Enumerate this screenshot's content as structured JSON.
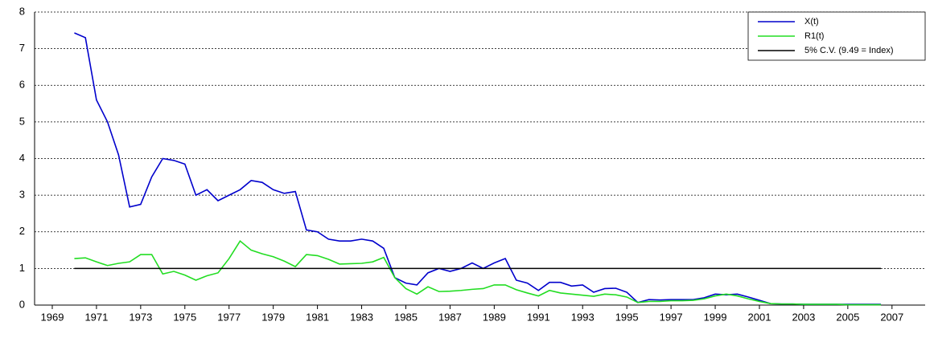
{
  "chart_data": {
    "type": "line",
    "x": [
      1970,
      1970.5,
      1971,
      1971.5,
      1972,
      1972.5,
      1973,
      1973.5,
      1974,
      1974.5,
      1975,
      1975.5,
      1976,
      1976.5,
      1977,
      1977.5,
      1978,
      1978.5,
      1979,
      1979.5,
      1980,
      1980.5,
      1981,
      1981.5,
      1982,
      1982.5,
      1983,
      1983.5,
      1984,
      1984.5,
      1985,
      1985.5,
      1986,
      1986.5,
      1987,
      1987.5,
      1988,
      1988.5,
      1989,
      1989.5,
      1990,
      1990.5,
      1991,
      1991.5,
      1992,
      1992.5,
      1993,
      1993.5,
      1994,
      1994.5,
      1995,
      1995.5,
      1996,
      1996.5,
      1997,
      1997.5,
      1998,
      1998.5,
      1999,
      1999.5,
      2000,
      2000.5,
      2001,
      2001.5,
      2002,
      2002.5,
      2003,
      2003.5,
      2004,
      2004.5,
      2005,
      2005.5,
      2006,
      2006.5
    ],
    "series": [
      {
        "name": "X(t)",
        "color": "#0000cc",
        "values": [
          7.43,
          7.3,
          5.6,
          5.0,
          4.1,
          2.68,
          2.75,
          3.5,
          4.0,
          3.95,
          3.85,
          3.0,
          3.15,
          2.85,
          3.0,
          3.15,
          3.4,
          3.35,
          3.15,
          3.05,
          3.1,
          2.05,
          2.0,
          1.8,
          1.75,
          1.75,
          1.8,
          1.75,
          1.55,
          0.75,
          0.6,
          0.55,
          0.88,
          1.0,
          0.92,
          1.0,
          1.15,
          1.0,
          1.15,
          1.27,
          0.68,
          0.6,
          0.4,
          0.62,
          0.62,
          0.52,
          0.55,
          0.35,
          0.45,
          0.46,
          0.35,
          0.07,
          0.15,
          0.14,
          0.15,
          0.15,
          0.15,
          0.2,
          0.3,
          0.28,
          0.3,
          0.22,
          0.13,
          0.04,
          0.03,
          0.03,
          0.02,
          0.02,
          0.02,
          0.02,
          0.02,
          0.02,
          0.02,
          0.02
        ]
      },
      {
        "name": "R1(t)",
        "color": "#22dd22",
        "values": [
          1.27,
          1.29,
          1.18,
          1.08,
          1.14,
          1.18,
          1.38,
          1.38,
          0.85,
          0.92,
          0.82,
          0.68,
          0.8,
          0.88,
          1.27,
          1.75,
          1.5,
          1.4,
          1.32,
          1.2,
          1.05,
          1.38,
          1.35,
          1.25,
          1.12,
          1.13,
          1.14,
          1.18,
          1.3,
          0.75,
          0.45,
          0.3,
          0.5,
          0.37,
          0.38,
          0.4,
          0.43,
          0.45,
          0.55,
          0.55,
          0.42,
          0.33,
          0.25,
          0.4,
          0.33,
          0.3,
          0.27,
          0.24,
          0.3,
          0.28,
          0.22,
          0.07,
          0.1,
          0.1,
          0.12,
          0.12,
          0.13,
          0.17,
          0.25,
          0.3,
          0.25,
          0.17,
          0.1,
          0.04,
          0.03,
          0.03,
          0.02,
          0.02,
          0.02,
          0.02,
          0.01,
          0.01,
          0.01,
          0.01
        ]
      },
      {
        "name": "5% C.V. (9.49 = Index)",
        "color": "#000000",
        "x": [
          1970,
          2006.5
        ],
        "values": [
          1,
          1
        ]
      }
    ],
    "xlim": [
      1968.2,
      2008.5
    ],
    "xticks": [
      1969,
      1971,
      1973,
      1975,
      1977,
      1979,
      1981,
      1983,
      1985,
      1987,
      1989,
      1991,
      1993,
      1995,
      1997,
      1999,
      2001,
      2003,
      2005,
      2007
    ],
    "ylim": [
      0,
      8
    ],
    "yticks": [
      0,
      1,
      2,
      3,
      4,
      5,
      6,
      7,
      8
    ],
    "grid": true,
    "legend": "top-right"
  }
}
